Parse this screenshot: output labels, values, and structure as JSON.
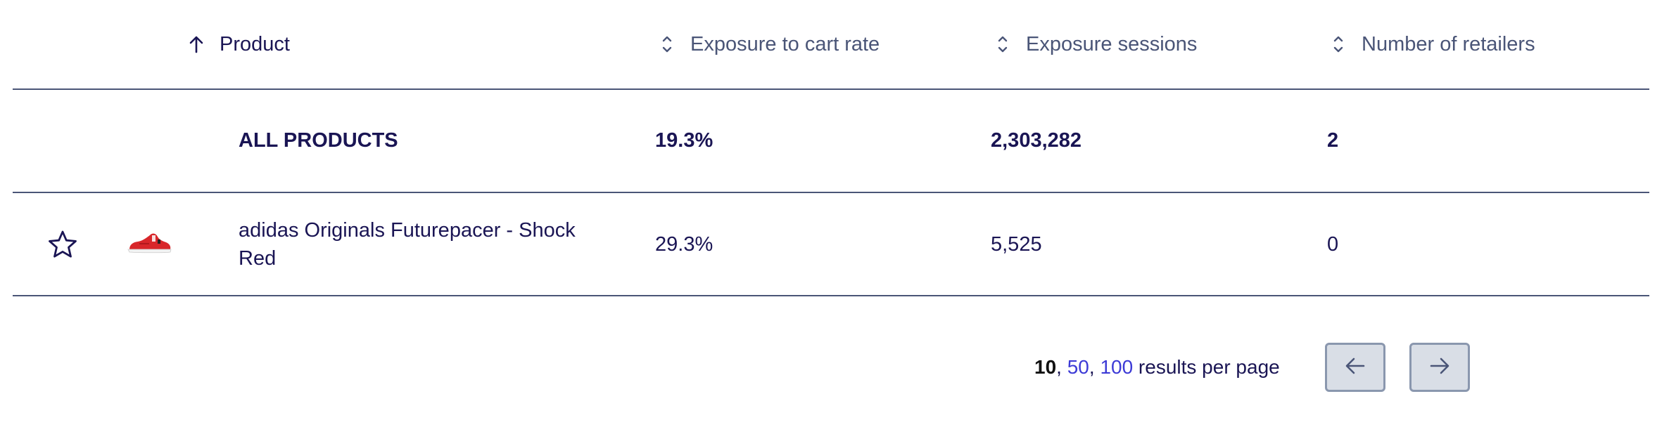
{
  "table": {
    "headers": {
      "product": "Product",
      "rate": "Exposure to cart rate",
      "sessions": "Exposure sessions",
      "retailers": "Number of retailers"
    },
    "summary": {
      "product": "ALL PRODUCTS",
      "rate": "19.3%",
      "sessions": "2,303,282",
      "retailers": "2"
    },
    "rows": [
      {
        "product": "adidas Originals Futurepacer - Shock Red",
        "rate": "29.3%",
        "sessions": "5,525",
        "retailers": "0",
        "image_icon": "red-sneaker-thumbnail",
        "favorite_icon": "star-outline-icon"
      }
    ]
  },
  "pagination": {
    "current": "10",
    "sep1": ", ",
    "option_50": "50",
    "sep2": ", ",
    "option_100": "100",
    "suffix": " results per page",
    "prev_icon": "arrow-left-icon",
    "next_icon": "arrow-right-icon"
  },
  "colors": {
    "text_primary": "#1a1554",
    "text_header": "#4a5577",
    "link": "#3d3bd6",
    "divider": "#4a5577",
    "button_bg": "#d9dee6",
    "button_border": "#8a97ae",
    "sneaker_red": "#d8262a"
  }
}
